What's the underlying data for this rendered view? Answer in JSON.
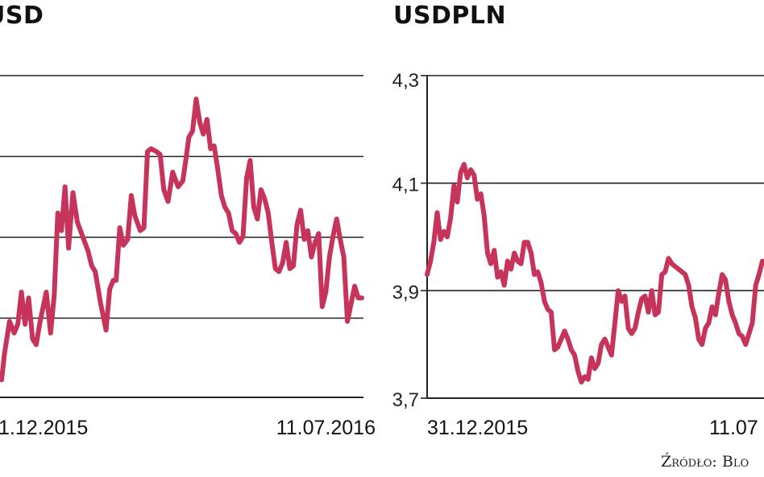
{
  "colors": {
    "line": "#c6345c",
    "grid": "#222222"
  },
  "source": "Źródło: Blo",
  "chart_data": [
    {
      "type": "line",
      "title": "USD",
      "x_ticks": [
        "1.12.2015",
        "11.07.2016"
      ],
      "y_ticks": [],
      "grid": true,
      "series": [
        {
          "x": [
            0,
            0.8,
            2.2,
            3.5,
            4.5,
            5.5,
            6.5,
            7.5,
            8.6,
            9.6,
            10.7,
            12.4,
            13.6,
            14.6,
            15.6,
            16.6,
            17.6,
            18.6,
            19.8,
            21.0,
            22.8,
            24.0,
            25.0,
            26.0,
            27.5,
            29.0,
            30.0,
            31.0,
            31.8,
            32.8,
            33.8,
            35.0,
            36.0,
            37.0,
            38.5,
            39.5,
            40.5,
            41.5,
            43.0,
            44.0,
            45.0,
            46.2,
            47.5,
            49.0,
            50.3,
            51.0,
            52.0,
            53.0,
            54.0,
            55.0,
            56.0,
            57.0,
            58.0,
            59.0,
            60.0,
            61.0,
            62.0,
            63.0,
            64.0,
            65.0,
            66.0,
            67.0,
            68.0,
            69.0,
            70.0,
            71.0,
            72.0,
            73.0,
            74.0,
            75.0,
            76.0,
            77.0,
            78.0,
            79.0,
            80.0,
            81.0,
            82.0,
            83.0,
            84.0,
            85.0,
            86.0,
            87.0,
            88.0,
            89.0,
            90.0,
            91.0,
            92.0,
            93.0,
            94.0,
            95.0,
            96.0,
            97.0,
            98.0,
            99.0,
            100.0
          ],
          "y": [
            1.076,
            1.085,
            1.096,
            1.092,
            1.095,
            1.106,
            1.095,
            1.104,
            1.09,
            1.088,
            1.096,
            1.106,
            1.092,
            1.105,
            1.133,
            1.127,
            1.142,
            1.121,
            1.14,
            1.13,
            1.124,
            1.12,
            1.115,
            1.113,
            1.102,
            1.093,
            1.107,
            1.11,
            1.11,
            1.128,
            1.122,
            1.124,
            1.139,
            1.132,
            1.127,
            1.128,
            1.154,
            1.155,
            1.154,
            1.153,
            1.141,
            1.137,
            1.147,
            1.142,
            1.144,
            1.15,
            1.159,
            1.161,
            1.172,
            1.164,
            1.16,
            1.165,
            1.155,
            1.156,
            1.148,
            1.139,
            1.135,
            1.133,
            1.127,
            1.126,
            1.123,
            1.125,
            1.145,
            1.151,
            1.135,
            1.131,
            1.141,
            1.138,
            1.133,
            1.123,
            1.114,
            1.113,
            1.116,
            1.123,
            1.114,
            1.115,
            1.129,
            1.134,
            1.124,
            1.127,
            1.118,
            1.123,
            1.126,
            1.101,
            1.106,
            1.118,
            1.125,
            1.131,
            1.124,
            1.118,
            1.096,
            1.102,
            1.108,
            1.104,
            1.104
          ]
        }
      ]
    },
    {
      "type": "line",
      "title": "USDPLN",
      "x_ticks": [
        "31.12.2015",
        "11.07"
      ],
      "y_ticks": [
        "4,3",
        "4,1",
        "3,9",
        "3,7"
      ],
      "ylim": [
        3.7,
        4.3
      ],
      "grid": true,
      "series": [
        {
          "x": [
            0,
            1,
            2,
            3,
            4,
            5,
            6,
            7,
            8,
            9,
            10,
            11,
            12,
            13,
            14,
            15,
            16,
            17,
            18,
            19,
            20,
            21,
            22,
            23,
            24,
            25,
            26,
            27,
            28,
            29,
            30,
            31,
            32,
            33,
            34,
            35,
            36,
            37,
            38,
            39,
            40,
            41,
            42,
            43,
            44,
            45,
            46,
            47,
            48,
            49,
            50,
            51,
            52,
            53,
            54,
            55,
            56,
            57,
            58,
            59,
            60,
            61,
            62,
            63,
            64,
            65,
            66,
            67,
            68,
            69,
            70,
            71,
            72,
            73,
            74,
            75,
            76,
            77,
            78,
            79,
            80,
            81,
            82,
            83,
            84,
            85,
            86,
            87,
            88,
            89,
            90,
            91,
            92,
            93,
            94,
            95,
            96,
            97,
            98,
            99,
            100
          ],
          "y": [
            3.93,
            3.955,
            3.99,
            4.045,
            3.995,
            4.01,
            4.0,
            4.035,
            4.095,
            4.065,
            4.12,
            4.135,
            4.11,
            4.125,
            4.115,
            4.07,
            4.08,
            4.04,
            3.97,
            3.95,
            3.975,
            3.925,
            3.935,
            3.91,
            3.955,
            3.94,
            3.97,
            3.955,
            3.95,
            3.99,
            3.99,
            3.97,
            3.93,
            3.935,
            3.915,
            3.88,
            3.865,
            3.86,
            3.79,
            3.795,
            3.81,
            3.825,
            3.81,
            3.79,
            3.78,
            3.75,
            3.73,
            3.74,
            3.735,
            3.775,
            3.755,
            3.765,
            3.8,
            3.81,
            3.795,
            3.78,
            3.84,
            3.9,
            3.88,
            3.89,
            3.83,
            3.82,
            3.83,
            3.86,
            3.885,
            3.89,
            3.86,
            3.9,
            3.855,
            3.86,
            3.93,
            3.935,
            3.96,
            3.95,
            3.945,
            3.94,
            3.935,
            3.93,
            3.91,
            3.87,
            3.85,
            3.81,
            3.8,
            3.83,
            3.84,
            3.87,
            3.855,
            3.895,
            3.93,
            3.92,
            3.88,
            3.855,
            3.84,
            3.82,
            3.815,
            3.8,
            3.82,
            3.84,
            3.91,
            3.93,
            3.955
          ]
        }
      ]
    }
  ]
}
